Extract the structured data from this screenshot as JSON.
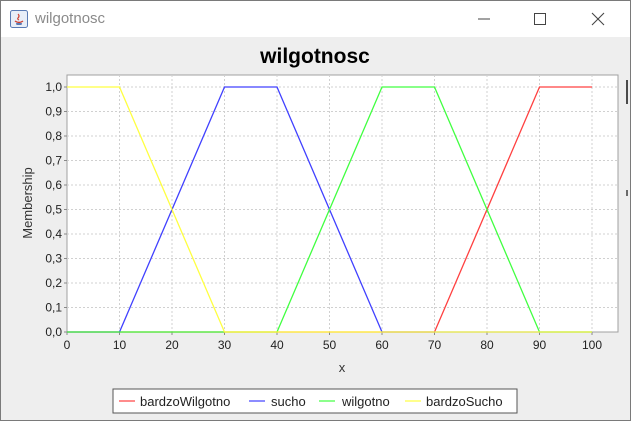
{
  "window": {
    "title": "wilgotnosc",
    "controls": {
      "minimize": "minimize",
      "maximize": "maximize",
      "close": "close"
    }
  },
  "colors": {
    "bardzoWilgotno": "#ff4040",
    "sucho": "#4040ff",
    "wilgotno": "#40ff40",
    "bardzoSucho": "#ffff40",
    "plot_bg": "#ffffff",
    "grid": "#d0d0d0"
  },
  "chart_data": {
    "type": "line",
    "title": "wilgotnosc",
    "xlabel": "x",
    "ylabel": "Membership",
    "xlim": [
      0,
      105
    ],
    "ylim": [
      0,
      1.05
    ],
    "xticks": [
      "0",
      "10",
      "20",
      "30",
      "40",
      "50",
      "60",
      "70",
      "80",
      "90",
      "100"
    ],
    "yticks": [
      "0,0",
      "0,1",
      "0,2",
      "0,3",
      "0,4",
      "0,5",
      "0,6",
      "0,7",
      "0,8",
      "0,9",
      "1,0"
    ],
    "grid": true,
    "legend_position": "bottom",
    "series": [
      {
        "name": "bardzoWilgotno",
        "color": "#ff4040",
        "x": [
          0,
          70,
          90,
          100
        ],
        "y": [
          0,
          0,
          1,
          1
        ]
      },
      {
        "name": "sucho",
        "color": "#4040ff",
        "x": [
          0,
          10,
          30,
          40,
          60,
          100
        ],
        "y": [
          0,
          0,
          1,
          1,
          0,
          0
        ]
      },
      {
        "name": "wilgotno",
        "color": "#40ff40",
        "x": [
          0,
          40,
          60,
          70,
          90,
          100
        ],
        "y": [
          0,
          0,
          1,
          1,
          0,
          0
        ]
      },
      {
        "name": "bardzoSucho",
        "color": "#ffff40",
        "x": [
          0,
          10,
          30,
          100
        ],
        "y": [
          1,
          1,
          0,
          0
        ]
      }
    ]
  }
}
